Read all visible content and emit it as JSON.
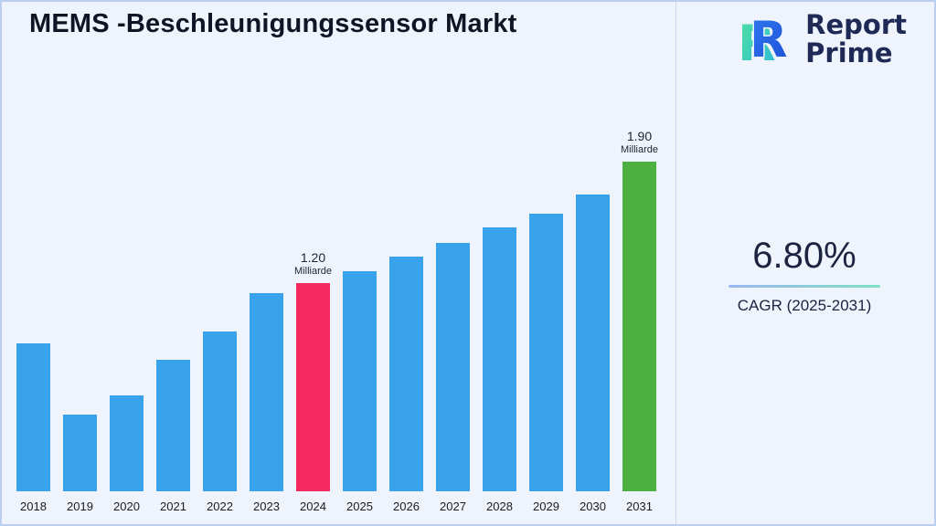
{
  "title": "MEMS -Beschleunigungssensor Markt",
  "logo": {
    "line1": "Report",
    "line2": "Prime",
    "icon": "report-prime-double-R-mark",
    "colors": {
      "text": "#1E2A55",
      "front": "#2F63E8",
      "back": "#3ED3A2"
    }
  },
  "cagr": {
    "value": "6.80%",
    "label": "CAGR (2025-2031)"
  },
  "chart_data": {
    "type": "bar",
    "title": "MEMS -Beschleunigungssensor Markt",
    "xlabel": "",
    "ylabel": "",
    "unit": "Milliarde",
    "categories": [
      "2018",
      "2019",
      "2020",
      "2021",
      "2022",
      "2023",
      "2024",
      "2025",
      "2026",
      "2027",
      "2028",
      "2029",
      "2030",
      "2031"
    ],
    "values": [
      0.85,
      0.44,
      0.55,
      0.76,
      0.92,
      1.14,
      1.2,
      1.27,
      1.35,
      1.43,
      1.52,
      1.6,
      1.71,
      1.9
    ],
    "colors": [
      "#38A3EA",
      "#38A3EA",
      "#38A3EA",
      "#38A3EA",
      "#38A3EA",
      "#38A3EA",
      "#F62A5E",
      "#38A3EA",
      "#38A3EA",
      "#38A3EA",
      "#38A3EA",
      "#38A3EA",
      "#38A3EA",
      "#4CB140"
    ],
    "annotations": [
      {
        "category": "2024",
        "value_label": "1.20",
        "unit_label": "Milliarde"
      },
      {
        "category": "2031",
        "value_label": "1.90",
        "unit_label": "Milliarde"
      }
    ],
    "ylim": [
      0,
      2.0
    ],
    "grid": false,
    "legend": false,
    "axis_line": false
  }
}
